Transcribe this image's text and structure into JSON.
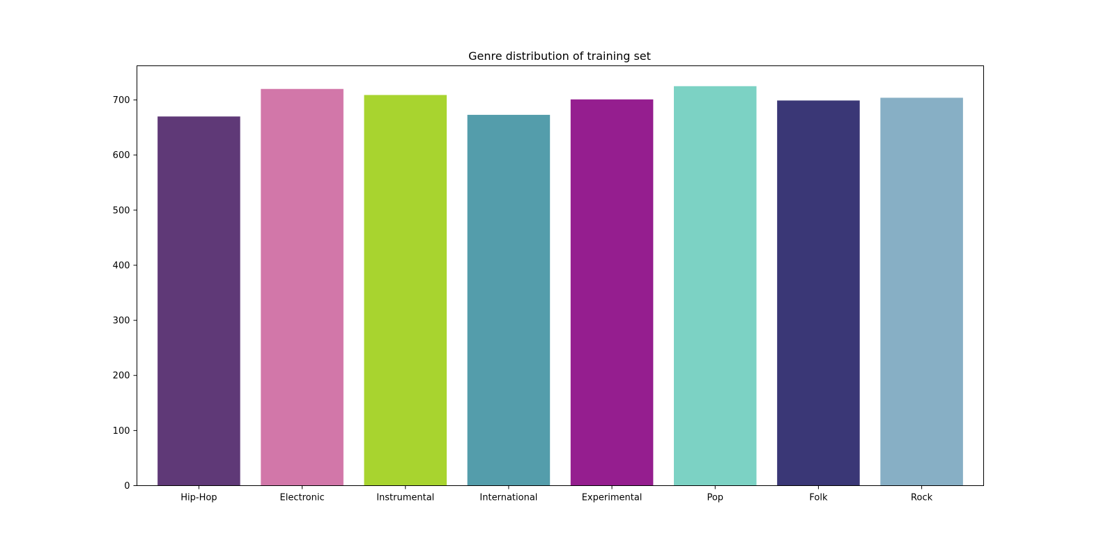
{
  "chart_data": {
    "type": "bar",
    "title": "Genre distribution of training set",
    "xlabel": "",
    "ylabel": "",
    "categories": [
      "Hip-Hop",
      "Electronic",
      "Instrumental",
      "International",
      "Experimental",
      "Pop",
      "Folk",
      "Rock"
    ],
    "values": [
      670,
      720,
      709,
      673,
      701,
      725,
      699,
      704
    ],
    "colors": [
      "#5f3977",
      "#d277a9",
      "#a8d42f",
      "#549dab",
      "#951e8f",
      "#7cd2c4",
      "#3a3776",
      "#87afc5"
    ],
    "ylim": [
      0,
      762
    ],
    "yticks": [
      0,
      100,
      200,
      300,
      400,
      500,
      600,
      700
    ],
    "grid": false,
    "legend": "none"
  }
}
